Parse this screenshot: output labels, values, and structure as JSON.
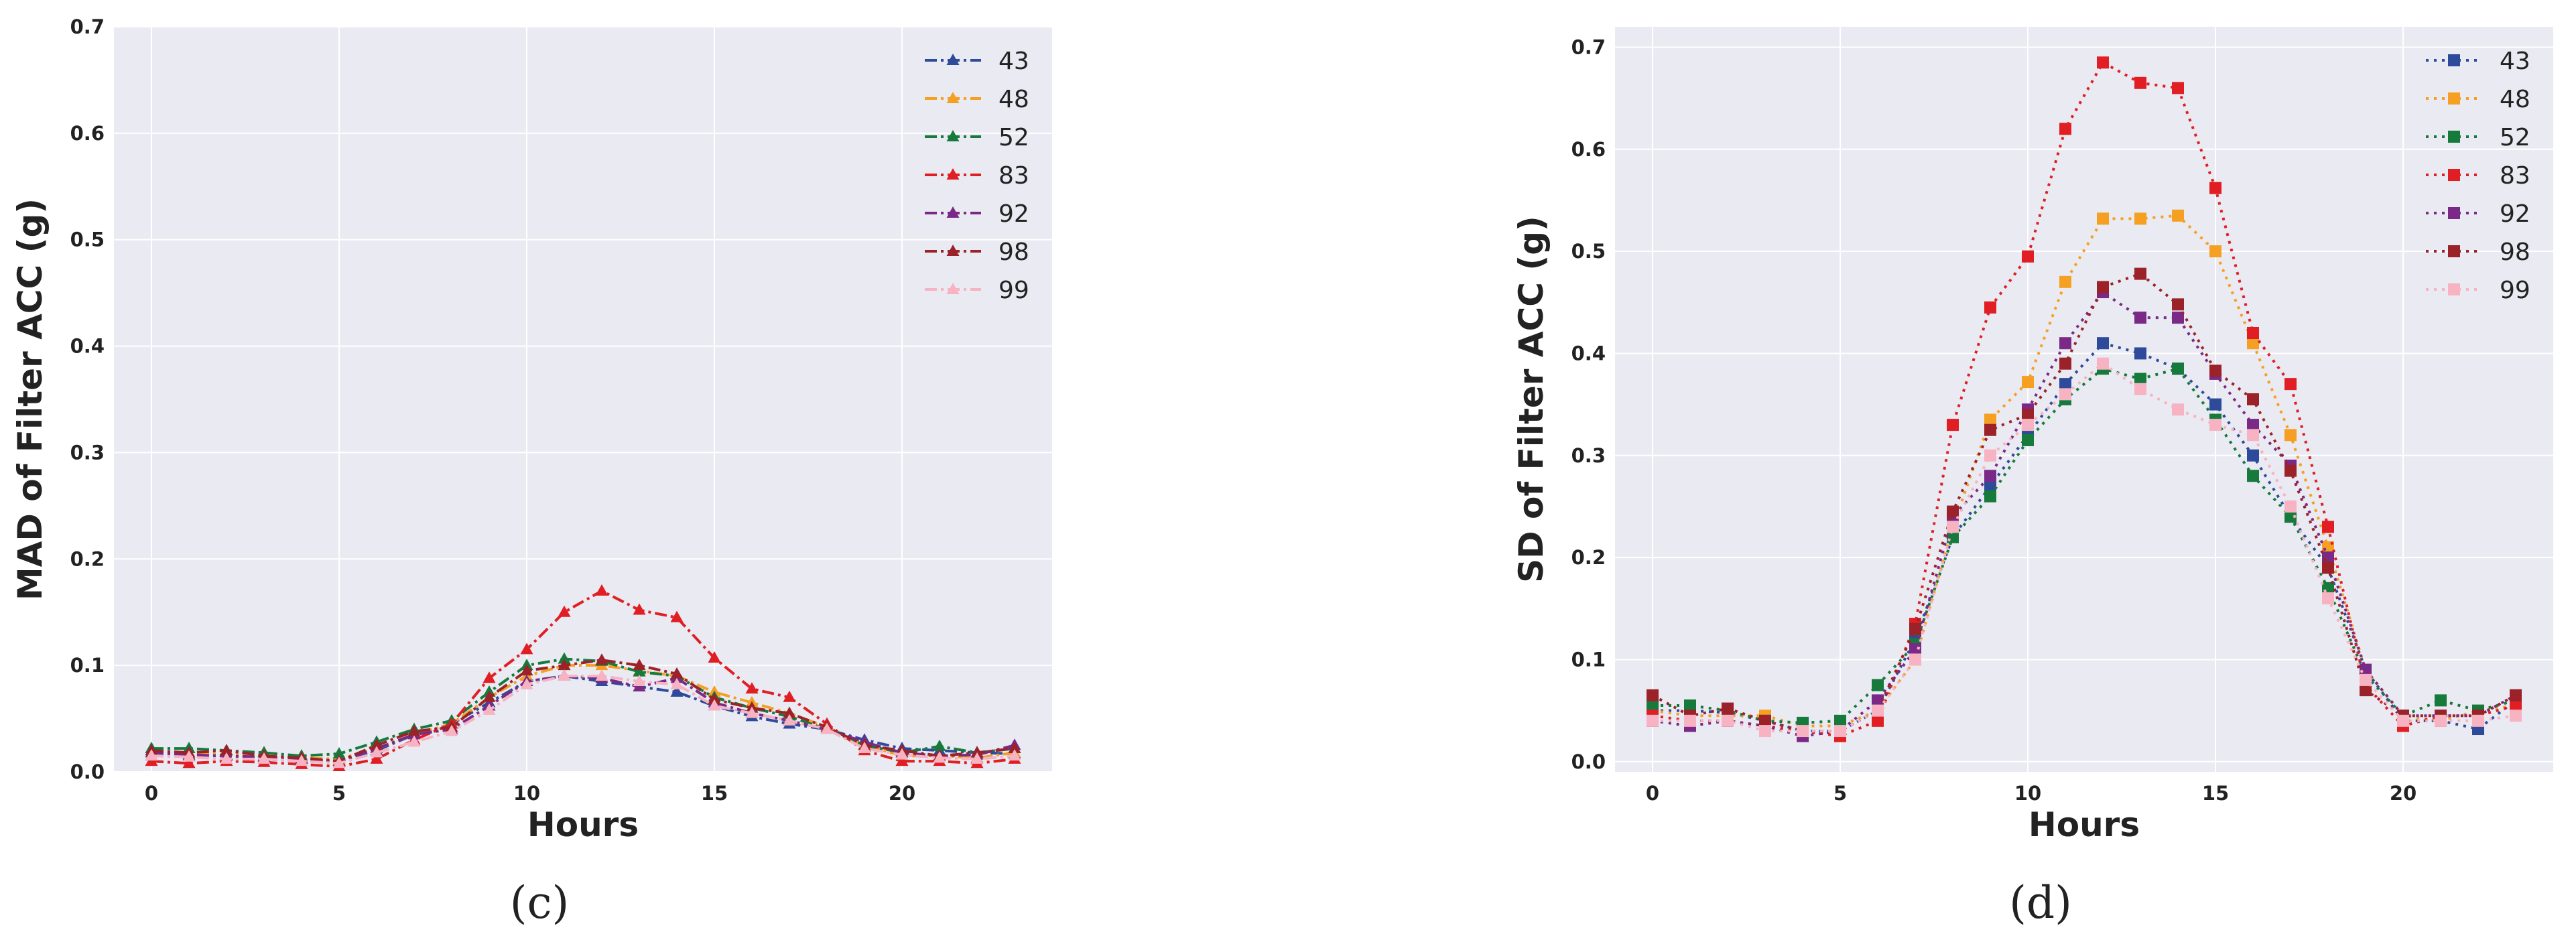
{
  "chart_data": [
    {
      "type": "line",
      "panel": "c",
      "caption": "(c)",
      "xlabel": "Hours",
      "ylabel": "MAD of Filter ACC (g)",
      "xlim": [
        -1,
        24
      ],
      "ylim": [
        0,
        0.7
      ],
      "xticks": [
        0,
        5,
        10,
        15,
        20
      ],
      "xtick_labels": [
        "0",
        "5",
        "10",
        "15",
        "20"
      ],
      "yticks": [
        0.0,
        0.1,
        0.2,
        0.3,
        0.4,
        0.5,
        0.6,
        0.7
      ],
      "ytick_labels": [
        "0.0",
        "0.1",
        "0.2",
        "0.3",
        "0.4",
        "0.5",
        "0.6",
        "0.7"
      ],
      "grid": true,
      "legend": "top-right",
      "marker": "triangle",
      "x": [
        0,
        1,
        2,
        3,
        4,
        5,
        6,
        7,
        8,
        9,
        10,
        11,
        12,
        13,
        14,
        15,
        16,
        17,
        18,
        19,
        20,
        21,
        22,
        23
      ],
      "series": [
        {
          "name": "43",
          "color": "#2d4a9b",
          "dash": "18,6,4,6",
          "values": [
            0.015,
            0.015,
            0.015,
            0.012,
            0.01,
            0.01,
            0.02,
            0.035,
            0.045,
            0.065,
            0.085,
            0.09,
            0.085,
            0.08,
            0.075,
            0.062,
            0.052,
            0.045,
            0.04,
            0.03,
            0.022,
            0.02,
            0.018,
            0.017
          ]
        },
        {
          "name": "48",
          "color": "#f5a023",
          "dash": "18,6,4,6",
          "values": [
            0.018,
            0.017,
            0.016,
            0.018,
            0.013,
            0.012,
            0.022,
            0.035,
            0.045,
            0.07,
            0.09,
            0.1,
            0.1,
            0.095,
            0.09,
            0.075,
            0.065,
            0.055,
            0.042,
            0.025,
            0.015,
            0.015,
            0.013,
            0.018
          ]
        },
        {
          "name": "52",
          "color": "#157a3c",
          "dash": "18,6,4,6",
          "values": [
            0.022,
            0.022,
            0.02,
            0.018,
            0.015,
            0.017,
            0.028,
            0.04,
            0.048,
            0.075,
            0.1,
            0.106,
            0.104,
            0.094,
            0.09,
            0.07,
            0.06,
            0.052,
            0.04,
            0.025,
            0.018,
            0.024,
            0.018,
            0.022
          ]
        },
        {
          "name": "83",
          "color": "#e01e24",
          "dash": "18,6,4,6",
          "values": [
            0.01,
            0.008,
            0.01,
            0.009,
            0.007,
            0.005,
            0.012,
            0.03,
            0.045,
            0.088,
            0.115,
            0.15,
            0.17,
            0.152,
            0.145,
            0.107,
            0.078,
            0.07,
            0.045,
            0.02,
            0.01,
            0.01,
            0.008,
            0.012
          ]
        },
        {
          "name": "92",
          "color": "#7a2a86",
          "dash": "18,6,4,6",
          "values": [
            0.018,
            0.016,
            0.015,
            0.014,
            0.012,
            0.01,
            0.022,
            0.035,
            0.04,
            0.062,
            0.085,
            0.09,
            0.088,
            0.08,
            0.088,
            0.065,
            0.055,
            0.048,
            0.04,
            0.028,
            0.018,
            0.015,
            0.016,
            0.025
          ]
        },
        {
          "name": "98",
          "color": "#9b2228",
          "dash": "18,6,4,6",
          "values": [
            0.02,
            0.018,
            0.02,
            0.015,
            0.013,
            0.01,
            0.025,
            0.038,
            0.042,
            0.07,
            0.095,
            0.1,
            0.105,
            0.1,
            0.092,
            0.068,
            0.06,
            0.055,
            0.042,
            0.025,
            0.02,
            0.015,
            0.018,
            0.022
          ]
        },
        {
          "name": "99",
          "color": "#f7b3c2",
          "dash": "18,6,4,6",
          "values": [
            0.015,
            0.014,
            0.012,
            0.012,
            0.01,
            0.008,
            0.018,
            0.028,
            0.038,
            0.058,
            0.082,
            0.09,
            0.09,
            0.085,
            0.082,
            0.062,
            0.055,
            0.048,
            0.04,
            0.022,
            0.016,
            0.013,
            0.012,
            0.015
          ]
        }
      ]
    },
    {
      "type": "line",
      "panel": "d",
      "caption": "(d)",
      "xlabel": "Hours",
      "ylabel": "SD of Filter ACC (g)",
      "xlim": [
        -1,
        24
      ],
      "ylim": [
        -0.01,
        0.72
      ],
      "xticks": [
        0,
        5,
        10,
        15,
        20
      ],
      "xtick_labels": [
        "0",
        "5",
        "10",
        "15",
        "20"
      ],
      "yticks": [
        0.0,
        0.1,
        0.2,
        0.3,
        0.4,
        0.5,
        0.6,
        0.7
      ],
      "ytick_labels": [
        "0.0",
        "0.1",
        "0.2",
        "0.3",
        "0.4",
        "0.5",
        "0.6",
        "0.7"
      ],
      "grid": true,
      "legend": "top-right",
      "marker": "square",
      "x": [
        0,
        1,
        2,
        3,
        4,
        5,
        6,
        7,
        8,
        9,
        10,
        11,
        12,
        13,
        14,
        15,
        16,
        17,
        18,
        19,
        20,
        21,
        22,
        23
      ],
      "series": [
        {
          "name": "43",
          "color": "#2d4a9b",
          "dash": "4,8",
          "values": [
            0.05,
            0.05,
            0.048,
            0.04,
            0.03,
            0.03,
            0.05,
            0.12,
            0.22,
            0.27,
            0.32,
            0.37,
            0.41,
            0.4,
            0.385,
            0.35,
            0.3,
            0.24,
            0.19,
            0.09,
            0.04,
            0.04,
            0.032,
            0.06
          ]
        },
        {
          "name": "48",
          "color": "#f5a023",
          "dash": "4,8",
          "values": [
            0.05,
            0.045,
            0.045,
            0.045,
            0.035,
            0.035,
            0.05,
            0.1,
            0.23,
            0.335,
            0.372,
            0.47,
            0.532,
            0.532,
            0.535,
            0.5,
            0.41,
            0.32,
            0.21,
            0.09,
            0.045,
            0.04,
            0.05,
            0.055
          ]
        },
        {
          "name": "52",
          "color": "#157a3c",
          "dash": "4,8",
          "values": [
            0.055,
            0.055,
            0.05,
            0.04,
            0.038,
            0.04,
            0.075,
            0.115,
            0.22,
            0.26,
            0.315,
            0.355,
            0.385,
            0.375,
            0.385,
            0.335,
            0.28,
            0.24,
            0.17,
            0.085,
            0.045,
            0.06,
            0.05,
            0.06
          ]
        },
        {
          "name": "83",
          "color": "#e01e24",
          "dash": "4,8",
          "values": [
            0.045,
            0.04,
            0.04,
            0.035,
            0.03,
            0.025,
            0.04,
            0.135,
            0.33,
            0.445,
            0.495,
            0.62,
            0.685,
            0.665,
            0.66,
            0.562,
            0.42,
            0.37,
            0.23,
            0.075,
            0.035,
            0.045,
            0.045,
            0.055
          ]
        },
        {
          "name": "92",
          "color": "#7a2a86",
          "dash": "4,8",
          "values": [
            0.04,
            0.035,
            0.04,
            0.035,
            0.025,
            0.03,
            0.06,
            0.11,
            0.24,
            0.28,
            0.345,
            0.41,
            0.46,
            0.435,
            0.435,
            0.38,
            0.33,
            0.29,
            0.2,
            0.09,
            0.045,
            0.045,
            0.045,
            0.065
          ]
        },
        {
          "name": "98",
          "color": "#9b2228",
          "dash": "4,8",
          "values": [
            0.065,
            0.045,
            0.052,
            0.04,
            0.03,
            0.03,
            0.05,
            0.13,
            0.245,
            0.325,
            0.34,
            0.39,
            0.465,
            0.478,
            0.448,
            0.383,
            0.355,
            0.285,
            0.19,
            0.07,
            0.045,
            0.045,
            0.045,
            0.065
          ]
        },
        {
          "name": "99",
          "color": "#f7b3c2",
          "dash": "4,8",
          "values": [
            0.04,
            0.04,
            0.04,
            0.03,
            0.03,
            0.03,
            0.05,
            0.1,
            0.23,
            0.3,
            0.33,
            0.36,
            0.39,
            0.365,
            0.345,
            0.33,
            0.32,
            0.25,
            0.16,
            0.08,
            0.04,
            0.04,
            0.04,
            0.045
          ]
        }
      ]
    }
  ]
}
